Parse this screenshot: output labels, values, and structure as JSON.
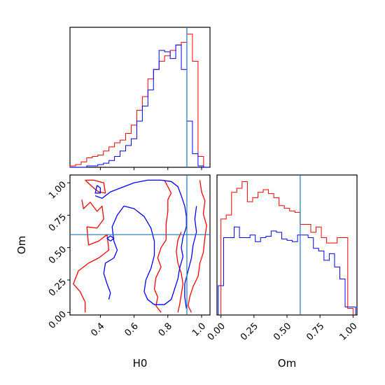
{
  "chart_data": [
    {
      "type": "histogram",
      "panel": "H0 marginal",
      "xlim": [
        0.22,
        1.05
      ],
      "x_ticks": [
        "0.4",
        "0.6",
        "0.8",
        "1.0"
      ],
      "x_tick_values": [
        0.4,
        0.6,
        0.8,
        1.0
      ],
      "show_tick_labels": false,
      "truth_line": 0.913,
      "series": [
        {
          "color": "#ff0000",
          "bin_edges": [
            0.22,
            0.253,
            0.286,
            0.319,
            0.352,
            0.385,
            0.418,
            0.451,
            0.484,
            0.517,
            0.55,
            0.583,
            0.616,
            0.649,
            0.682,
            0.715,
            0.748,
            0.781,
            0.814,
            0.847,
            0.88,
            0.913,
            0.946,
            0.979,
            1.012,
            1.045
          ],
          "heights": [
            0.01,
            0.02,
            0.04,
            0.07,
            0.08,
            0.09,
            0.12,
            0.15,
            0.18,
            0.2,
            0.25,
            0.31,
            0.42,
            0.52,
            0.65,
            0.72,
            0.78,
            0.82,
            0.86,
            0.9,
            0.92,
            0.98,
            0.78,
            0.08,
            0.0
          ]
        },
        {
          "color": "#0000ff",
          "bin_edges": [
            0.22,
            0.253,
            0.286,
            0.319,
            0.352,
            0.385,
            0.418,
            0.451,
            0.484,
            0.517,
            0.55,
            0.583,
            0.616,
            0.649,
            0.682,
            0.715,
            0.748,
            0.781,
            0.814,
            0.847,
            0.88,
            0.913,
            0.946,
            0.979,
            1.012,
            1.045
          ],
          "heights": [
            0.0,
            0.0,
            0.0,
            0.01,
            0.01,
            0.02,
            0.03,
            0.05,
            0.08,
            0.12,
            0.16,
            0.21,
            0.34,
            0.45,
            0.57,
            0.72,
            0.86,
            0.85,
            0.8,
            0.9,
            0.72,
            0.34,
            0.1,
            0.01,
            0.0
          ]
        }
      ],
      "ylim": [
        0,
        1.03
      ]
    },
    {
      "type": "contour",
      "panel": "H0 vs Om joint",
      "xlabel": "H0",
      "ylabel": "Om",
      "xlim": [
        0.22,
        1.05
      ],
      "ylim": [
        -0.02,
        1.06
      ],
      "x_ticks": [
        "0.4",
        "0.6",
        "0.8",
        "1.0"
      ],
      "x_tick_values": [
        0.4,
        0.6,
        0.8,
        1.0
      ],
      "y_ticks": [
        "0.00",
        "0.25",
        "0.50",
        "0.75",
        "1.00"
      ],
      "y_tick_values": [
        0.0,
        0.25,
        0.5,
        0.75,
        1.0
      ],
      "truth_point": [
        0.913,
        0.6
      ],
      "contours": [
        {
          "color": "#ff0000",
          "points": [
            [
              0.29,
              0.87
            ],
            [
              0.3,
              0.8
            ],
            [
              0.34,
              0.85
            ],
            [
              0.38,
              0.78
            ],
            [
              0.41,
              0.82
            ],
            [
              0.42,
              0.72
            ],
            [
              0.38,
              0.65
            ],
            [
              0.32,
              0.66
            ],
            [
              0.33,
              0.52
            ],
            [
              0.39,
              0.55
            ],
            [
              0.44,
              0.6
            ],
            [
              0.45,
              0.48
            ],
            [
              0.39,
              0.42
            ],
            [
              0.33,
              0.38
            ],
            [
              0.27,
              0.32
            ],
            [
              0.24,
              0.22
            ],
            [
              0.28,
              0.16
            ],
            [
              0.31,
              0.08
            ],
            [
              0.31,
              0.0
            ]
          ]
        },
        {
          "color": "#ff0000",
          "points": [
            [
              0.31,
              1.02
            ],
            [
              0.36,
              1.02
            ],
            [
              0.42,
              1.0
            ],
            [
              0.43,
              0.92
            ],
            [
              0.39,
              0.93
            ],
            [
              0.36,
              0.96
            ],
            [
              0.31,
              1.02
            ]
          ]
        },
        {
          "color": "#ff0000",
          "points": [
            [
              0.78,
              1.02
            ],
            [
              0.8,
              0.97
            ],
            [
              0.82,
              0.92
            ],
            [
              0.8,
              0.87
            ],
            [
              0.8,
              0.78
            ],
            [
              0.79,
              0.68
            ],
            [
              0.79,
              0.56
            ],
            [
              0.76,
              0.5
            ],
            [
              0.74,
              0.42
            ],
            [
              0.76,
              0.35
            ],
            [
              0.73,
              0.27
            ],
            [
              0.72,
              0.18
            ],
            [
              0.74,
              0.12
            ],
            [
              0.73,
              0.05
            ],
            [
              0.76,
              0.0
            ]
          ]
        },
        {
          "color": "#ff0000",
          "points": [
            [
              0.99,
              1.02
            ],
            [
              1.0,
              0.93
            ],
            [
              1.02,
              0.86
            ],
            [
              1.01,
              0.76
            ],
            [
              1.03,
              0.67
            ],
            [
              1.02,
              0.58
            ],
            [
              1.01,
              0.46
            ],
            [
              0.99,
              0.38
            ],
            [
              0.98,
              0.28
            ],
            [
              0.95,
              0.2
            ],
            [
              0.93,
              0.12
            ],
            [
              0.92,
              0.05
            ],
            [
              0.94,
              0.0
            ]
          ]
        },
        {
          "color": "#ff0000",
          "points": [
            [
              0.88,
              0.62
            ],
            [
              0.86,
              0.56
            ],
            [
              0.85,
              0.47
            ],
            [
              0.86,
              0.38
            ],
            [
              0.88,
              0.3
            ],
            [
              0.89,
              0.22
            ],
            [
              0.88,
              0.14
            ],
            [
              0.87,
              0.06
            ],
            [
              0.86,
              0.0
            ]
          ]
        },
        {
          "color": "#0000ff",
          "points": [
            [
              0.37,
              0.9
            ],
            [
              0.41,
              0.88
            ],
            [
              0.46,
              0.93
            ],
            [
              0.52,
              0.96
            ],
            [
              0.6,
              1.0
            ],
            [
              0.68,
              1.02
            ],
            [
              0.76,
              1.02
            ],
            [
              0.82,
              1.01
            ],
            [
              0.86,
              0.97
            ],
            [
              0.88,
              0.9
            ],
            [
              0.9,
              0.82
            ],
            [
              0.91,
              0.74
            ],
            [
              0.91,
              0.66
            ],
            [
              0.89,
              0.58
            ],
            [
              0.88,
              0.5
            ],
            [
              0.89,
              0.43
            ],
            [
              0.87,
              0.34
            ],
            [
              0.86,
              0.26
            ],
            [
              0.84,
              0.18
            ],
            [
              0.82,
              0.1
            ],
            [
              0.78,
              0.06
            ],
            [
              0.72,
              0.06
            ],
            [
              0.68,
              0.1
            ],
            [
              0.66,
              0.16
            ],
            [
              0.67,
              0.25
            ],
            [
              0.7,
              0.34
            ],
            [
              0.72,
              0.44
            ],
            [
              0.72,
              0.55
            ],
            [
              0.7,
              0.65
            ],
            [
              0.66,
              0.74
            ],
            [
              0.6,
              0.8
            ],
            [
              0.54,
              0.82
            ],
            [
              0.5,
              0.75
            ],
            [
              0.47,
              0.66
            ],
            [
              0.48,
              0.55
            ],
            [
              0.5,
              0.48
            ],
            [
              0.48,
              0.42
            ],
            [
              0.43,
              0.38
            ],
            [
              0.42,
              0.3
            ],
            [
              0.44,
              0.22
            ],
            [
              0.46,
              0.15
            ],
            [
              0.45,
              0.1
            ]
          ]
        },
        {
          "color": "#0000ff",
          "points": [
            [
              0.97,
              0.82
            ],
            [
              0.96,
              0.72
            ],
            [
              0.97,
              0.62
            ],
            [
              0.95,
              0.52
            ],
            [
              0.94,
              0.42
            ],
            [
              0.92,
              0.32
            ],
            [
              0.9,
              0.22
            ],
            [
              0.9,
              0.12
            ],
            [
              0.91,
              0.03
            ]
          ]
        },
        {
          "color": "#0000ff",
          "points": [
            [
              0.46,
              0.55
            ],
            [
              0.48,
              0.57
            ],
            [
              0.46,
              0.59
            ],
            [
              0.44,
              0.57
            ],
            [
              0.46,
              0.55
            ]
          ]
        },
        {
          "color": "#0000ff",
          "points": [
            [
              0.38,
              0.98
            ],
            [
              0.4,
              0.96
            ],
            [
              0.4,
              0.92
            ],
            [
              0.37,
              0.92
            ],
            [
              0.38,
              0.98
            ]
          ]
        }
      ]
    },
    {
      "type": "histogram",
      "panel": "Om marginal",
      "xlabel": "Om",
      "xlim": [
        -0.03,
        1.03
      ],
      "x_ticks": [
        "0.00",
        "0.25",
        "0.50",
        "0.75",
        "1.00"
      ],
      "x_tick_values": [
        0.0,
        0.25,
        0.5,
        0.75,
        1.0
      ],
      "truth_line": 0.6,
      "series": [
        {
          "color": "#ff0000",
          "bin_edges": [
            0.0,
            0.04,
            0.08,
            0.12,
            0.16,
            0.2,
            0.24,
            0.28,
            0.32,
            0.36,
            0.4,
            0.44,
            0.48,
            0.52,
            0.56,
            0.6,
            0.64,
            0.68,
            0.72,
            0.76,
            0.8,
            0.84,
            0.88,
            0.92,
            0.96,
            1.0
          ],
          "heights": [
            0.72,
            0.75,
            0.92,
            0.95,
            1.0,
            0.85,
            0.88,
            0.92,
            0.94,
            0.91,
            0.88,
            0.82,
            0.8,
            0.78,
            0.77,
            0.68,
            0.68,
            0.62,
            0.66,
            0.58,
            0.54,
            0.54,
            0.58,
            0.58,
            0.05
          ]
        },
        {
          "color": "#0000ff",
          "bin_edges": [
            -0.02,
            0.02,
            0.06,
            0.1,
            0.14,
            0.18,
            0.22,
            0.26,
            0.3,
            0.34,
            0.38,
            0.42,
            0.46,
            0.5,
            0.54,
            0.58,
            0.62,
            0.66,
            0.7,
            0.74,
            0.78,
            0.82,
            0.86,
            0.9,
            0.94,
            0.98,
            1.02
          ],
          "heights": [
            0.22,
            0.58,
            0.58,
            0.66,
            0.58,
            0.58,
            0.6,
            0.55,
            0.58,
            0.59,
            0.63,
            0.62,
            0.57,
            0.56,
            0.55,
            0.6,
            0.6,
            0.58,
            0.5,
            0.48,
            0.41,
            0.46,
            0.36,
            0.27,
            0.06,
            0.06
          ]
        }
      ],
      "ylim": [
        0,
        1.05
      ]
    }
  ],
  "colors": {
    "red": "#ff0000",
    "blue": "#0000ff",
    "truth": "#1f77b4",
    "axes": "#000000"
  }
}
